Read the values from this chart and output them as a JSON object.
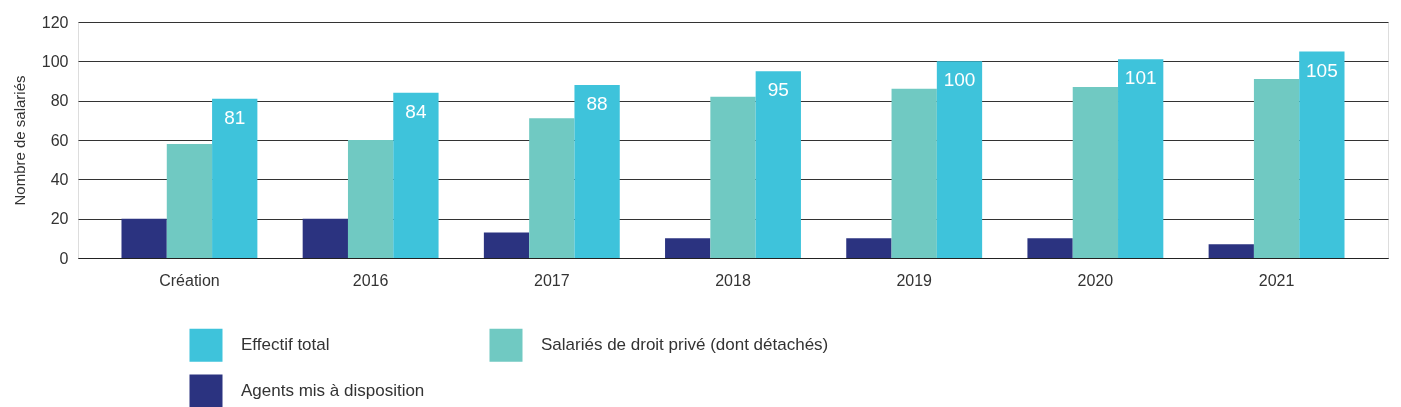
{
  "chart_data": {
    "type": "bar",
    "ylabel": "Nombre de salariés",
    "categories": [
      "Création",
      "2016",
      "2017",
      "2018",
      "2019",
      "2020",
      "2021"
    ],
    "series": [
      {
        "name": "Agents mis à disposition",
        "color": "#2b3380",
        "values": [
          20,
          20,
          13,
          10,
          10,
          10,
          7
        ]
      },
      {
        "name": "Salariés de droit privé (dont détachés)",
        "color": "#70c9c2",
        "values": [
          58,
          60,
          71,
          82,
          86,
          87,
          91
        ]
      },
      {
        "name": "Effectif total",
        "color": "#3ec3db",
        "values": [
          81,
          84,
          88,
          95,
          100,
          101,
          105
        ],
        "value_labels": [
          "81",
          "84",
          "88",
          "95",
          "100",
          "101",
          "105"
        ]
      }
    ],
    "ylim": [
      0,
      120
    ],
    "yticks": [
      0,
      20,
      40,
      60,
      80,
      100,
      120
    ],
    "grid": "y",
    "legend": "bottom"
  }
}
